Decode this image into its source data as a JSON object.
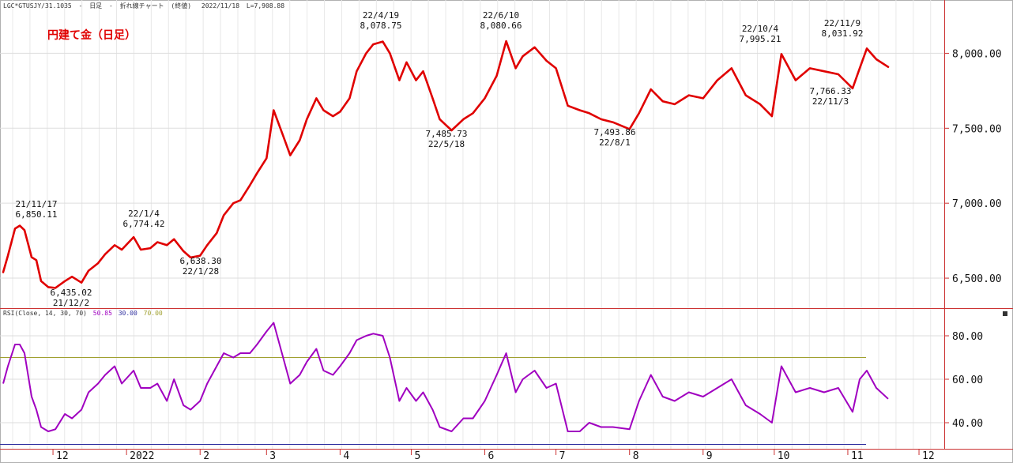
{
  "header": {
    "symbol": "LGC*GTUSJY/31.1035",
    "sep1": "-",
    "timeframe": "日足",
    "sep2": "-",
    "chart_kind": "折れ線チャート",
    "close_mode": "(終値)",
    "date": "2022/11/18",
    "last": "L=7,908.88"
  },
  "price_panel": {
    "title": "円建て金（日足）",
    "line_color": "#e00000",
    "y_ticks": [
      "8,000.00",
      "7,500.00",
      "7,000.00",
      "6,500.00"
    ],
    "annotations": [
      {
        "date": "21/11/17",
        "value": "6,850.11"
      },
      {
        "date": "21/12/2",
        "value": "6,435.02"
      },
      {
        "date": "22/1/4",
        "value": "6,774.42"
      },
      {
        "date": "22/1/28",
        "value": "6,638.30"
      },
      {
        "date": "22/4/19",
        "value": "8,078.75"
      },
      {
        "date": "22/5/18",
        "value": "7,485.73"
      },
      {
        "date": "22/6/10",
        "value": "8,080.66"
      },
      {
        "date": "22/8/1",
        "value": "7,493.86"
      },
      {
        "date": "22/10/4",
        "value": "7,995.21"
      },
      {
        "date": "22/11/3",
        "value": "7,766.33"
      },
      {
        "date": "22/11/9",
        "value": "8,031.92"
      }
    ]
  },
  "rsi_panel": {
    "legend_name": "RSI(Close, 14, 30, 70)",
    "legend_val1": "50.85",
    "legend_val2": "30.00",
    "legend_val3": "70.00",
    "legend_color1": "#a000c0",
    "legend_color2": "#3030a0",
    "legend_color3": "#a0a030",
    "line_color": "#a000c0",
    "upper_line_color": "#a0a030",
    "lower_line_color": "#3030a0",
    "y_ticks": [
      "80.00",
      "60.00",
      "40.00"
    ]
  },
  "x_axis": {
    "labels": [
      "12",
      "2022",
      "2",
      "3",
      "4",
      "5",
      "6",
      "7",
      "8",
      "9",
      "10",
      "11",
      "12"
    ]
  },
  "chart_data": [
    {
      "type": "line",
      "title": "円建て金（日足）",
      "x": [
        "2021-11-10",
        "2021-11-12",
        "2021-11-15",
        "2021-11-17",
        "2021-11-19",
        "2021-11-22",
        "2021-11-24",
        "2021-11-26",
        "2021-11-29",
        "2021-12-02",
        "2021-12-06",
        "2021-12-09",
        "2021-12-13",
        "2021-12-16",
        "2021-12-20",
        "2021-12-23",
        "2021-12-27",
        "2021-12-30",
        "2022-01-04",
        "2022-01-07",
        "2022-01-11",
        "2022-01-14",
        "2022-01-18",
        "2022-01-21",
        "2022-01-25",
        "2022-01-28",
        "2022-02-01",
        "2022-02-04",
        "2022-02-08",
        "2022-02-11",
        "2022-02-15",
        "2022-02-18",
        "2022-02-22",
        "2022-02-25",
        "2022-03-01",
        "2022-03-04",
        "2022-03-08",
        "2022-03-11",
        "2022-03-15",
        "2022-03-18",
        "2022-03-22",
        "2022-03-25",
        "2022-03-29",
        "2022-04-01",
        "2022-04-05",
        "2022-04-08",
        "2022-04-12",
        "2022-04-15",
        "2022-04-19",
        "2022-04-22",
        "2022-04-26",
        "2022-04-29",
        "2022-05-03",
        "2022-05-06",
        "2022-05-10",
        "2022-05-13",
        "2022-05-18",
        "2022-05-23",
        "2022-05-27",
        "2022-06-01",
        "2022-06-06",
        "2022-06-10",
        "2022-06-14",
        "2022-06-17",
        "2022-06-22",
        "2022-06-27",
        "2022-07-01",
        "2022-07-06",
        "2022-07-11",
        "2022-07-15",
        "2022-07-20",
        "2022-07-25",
        "2022-08-01",
        "2022-08-05",
        "2022-08-10",
        "2022-08-15",
        "2022-08-20",
        "2022-08-26",
        "2022-09-01",
        "2022-09-07",
        "2022-09-13",
        "2022-09-19",
        "2022-09-25",
        "2022-09-30",
        "2022-10-04",
        "2022-10-10",
        "2022-10-16",
        "2022-10-22",
        "2022-10-28",
        "2022-11-03",
        "2022-11-06",
        "2022-11-09",
        "2022-11-13",
        "2022-11-18"
      ],
      "series": [
        {
          "name": "",
          "values": [
            6540,
            6650,
            6830,
            6850,
            6820,
            6640,
            6620,
            6480,
            6440,
            6435,
            6480,
            6510,
            6470,
            6550,
            6600,
            6660,
            6720,
            6690,
            6774,
            6690,
            6700,
            6740,
            6720,
            6760,
            6680,
            6638,
            6650,
            6720,
            6800,
            6920,
            7000,
            7020,
            7120,
            7200,
            7300,
            7620,
            7450,
            7320,
            7420,
            7560,
            7700,
            7620,
            7580,
            7610,
            7700,
            7880,
            8000,
            8060,
            8078,
            8000,
            7820,
            7940,
            7820,
            7880,
            7700,
            7560,
            7486,
            7560,
            7600,
            7700,
            7850,
            8081,
            7900,
            7980,
            8040,
            7950,
            7900,
            7650,
            7620,
            7600,
            7560,
            7540,
            7494,
            7600,
            7760,
            7680,
            7660,
            7720,
            7700,
            7820,
            7900,
            7720,
            7660,
            7580,
            7995,
            7820,
            7900,
            7880,
            7860,
            7766,
            7900,
            8032,
            7960,
            7909
          ]
        }
      ],
      "ylim": [
        6300,
        8250
      ],
      "yticks": [
        6500,
        7000,
        7500,
        8000
      ]
    },
    {
      "type": "line",
      "title": "RSI(Close, 14, 30, 70)",
      "x": [
        "2021-11-10",
        "2021-11-12",
        "2021-11-15",
        "2021-11-17",
        "2021-11-19",
        "2021-11-22",
        "2021-11-24",
        "2021-11-26",
        "2021-11-29",
        "2021-12-02",
        "2021-12-06",
        "2021-12-09",
        "2021-12-13",
        "2021-12-16",
        "2021-12-20",
        "2021-12-23",
        "2021-12-27",
        "2021-12-30",
        "2022-01-04",
        "2022-01-07",
        "2022-01-11",
        "2022-01-14",
        "2022-01-18",
        "2022-01-21",
        "2022-01-25",
        "2022-01-28",
        "2022-02-01",
        "2022-02-04",
        "2022-02-08",
        "2022-02-11",
        "2022-02-15",
        "2022-02-18",
        "2022-02-22",
        "2022-02-25",
        "2022-03-01",
        "2022-03-04",
        "2022-03-08",
        "2022-03-11",
        "2022-03-15",
        "2022-03-18",
        "2022-03-22",
        "2022-03-25",
        "2022-03-29",
        "2022-04-01",
        "2022-04-05",
        "2022-04-08",
        "2022-04-12",
        "2022-04-15",
        "2022-04-19",
        "2022-04-22",
        "2022-04-26",
        "2022-04-29",
        "2022-05-03",
        "2022-05-06",
        "2022-05-10",
        "2022-05-13",
        "2022-05-18",
        "2022-05-23",
        "2022-05-27",
        "2022-06-01",
        "2022-06-06",
        "2022-06-10",
        "2022-06-14",
        "2022-06-17",
        "2022-06-22",
        "2022-06-27",
        "2022-07-01",
        "2022-07-06",
        "2022-07-11",
        "2022-07-15",
        "2022-07-20",
        "2022-07-25",
        "2022-08-01",
        "2022-08-05",
        "2022-08-10",
        "2022-08-15",
        "2022-08-20",
        "2022-08-26",
        "2022-09-01",
        "2022-09-07",
        "2022-09-13",
        "2022-09-19",
        "2022-09-25",
        "2022-09-30",
        "2022-10-04",
        "2022-10-10",
        "2022-10-16",
        "2022-10-22",
        "2022-10-28",
        "2022-11-03",
        "2022-11-06",
        "2022-11-09",
        "2022-11-13",
        "2022-11-18"
      ],
      "series": [
        {
          "name": "",
          "values": [
            58,
            66,
            76,
            76,
            72,
            52,
            46,
            38,
            36,
            37,
            44,
            42,
            46,
            54,
            58,
            62,
            66,
            58,
            64,
            56,
            56,
            58,
            50,
            60,
            48,
            46,
            50,
            58,
            66,
            72,
            70,
            72,
            72,
            76,
            82,
            86,
            70,
            58,
            62,
            68,
            74,
            64,
            62,
            66,
            72,
            78,
            80,
            81,
            80,
            70,
            50,
            56,
            50,
            54,
            46,
            38,
            36,
            42,
            42,
            50,
            62,
            72,
            54,
            60,
            64,
            56,
            58,
            36,
            36,
            40,
            38,
            38,
            37,
            50,
            62,
            52,
            50,
            54,
            52,
            56,
            60,
            48,
            44,
            40,
            66,
            54,
            56,
            54,
            56,
            45,
            60,
            64,
            56,
            51
          ]
        }
      ],
      "ylim": [
        28,
        92
      ],
      "yticks": [
        40,
        60,
        80
      ],
      "reference_lines": [
        30,
        70
      ]
    }
  ]
}
